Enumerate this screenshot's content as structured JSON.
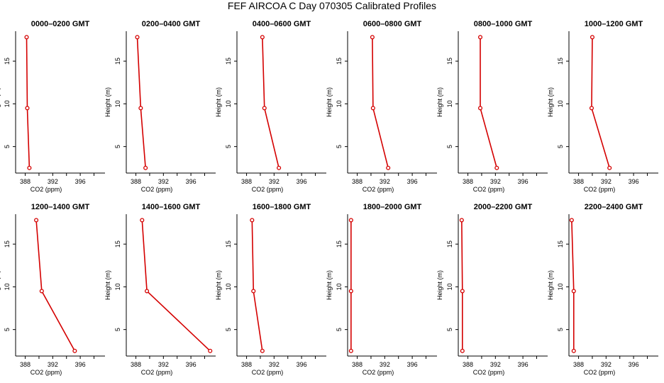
{
  "figure": {
    "title": "FEF AIRCOA C  Day 070305  Calibrated Profiles",
    "xlabel": "CO2 (ppm)",
    "ylabel": "Height (m)",
    "line_color": "#d40000",
    "background": "#ffffff"
  },
  "chart_data": [
    {
      "type": "line",
      "title": "0000–0200 GMT",
      "x": [
        388.2,
        388.3,
        388.6
      ],
      "y": [
        17.8,
        9.5,
        2.5
      ],
      "xticks": [
        388,
        392,
        396
      ],
      "yticks": [
        5,
        10,
        15
      ],
      "xlim": [
        386.6,
        399.6
      ],
      "ylim": [
        1.9,
        18.5
      ]
    },
    {
      "type": "line",
      "title": "0200–0400 GMT",
      "x": [
        388.2,
        388.7,
        389.4
      ],
      "y": [
        17.8,
        9.5,
        2.5
      ],
      "xticks": [
        388,
        392,
        396
      ],
      "yticks": [
        5,
        10,
        15
      ],
      "xlim": [
        386.6,
        399.6
      ],
      "ylim": [
        1.9,
        18.5
      ]
    },
    {
      "type": "line",
      "title": "0400–0600 GMT",
      "x": [
        390.3,
        390.6,
        392.7
      ],
      "y": [
        17.8,
        9.5,
        2.5
      ],
      "xticks": [
        388,
        392,
        396
      ],
      "yticks": [
        5,
        10,
        15
      ],
      "xlim": [
        386.6,
        399.6
      ],
      "ylim": [
        1.9,
        18.5
      ]
    },
    {
      "type": "line",
      "title": "0600–0800 GMT",
      "x": [
        390.2,
        390.3,
        392.5
      ],
      "y": [
        17.8,
        9.5,
        2.5
      ],
      "xticks": [
        388,
        392,
        396
      ],
      "yticks": [
        5,
        10,
        15
      ],
      "xlim": [
        386.6,
        399.6
      ],
      "ylim": [
        1.9,
        18.5
      ]
    },
    {
      "type": "line",
      "title": "0800–1000 GMT",
      "x": [
        389.8,
        389.8,
        392.2
      ],
      "y": [
        17.8,
        9.5,
        2.5
      ],
      "xticks": [
        388,
        392,
        396
      ],
      "yticks": [
        5,
        10,
        15
      ],
      "xlim": [
        386.6,
        399.6
      ],
      "ylim": [
        1.9,
        18.5
      ]
    },
    {
      "type": "line",
      "title": "1000–1200 GMT",
      "x": [
        390.0,
        389.9,
        392.5
      ],
      "y": [
        17.8,
        9.5,
        2.5
      ],
      "xticks": [
        388,
        392,
        396
      ],
      "yticks": [
        5,
        10,
        15
      ],
      "xlim": [
        386.6,
        399.6
      ],
      "ylim": [
        1.9,
        18.5
      ]
    },
    {
      "type": "line",
      "title": "1200–1400 GMT",
      "x": [
        389.6,
        390.4,
        395.2
      ],
      "y": [
        17.8,
        9.5,
        2.5
      ],
      "xticks": [
        388,
        392,
        396
      ],
      "yticks": [
        5,
        10,
        15
      ],
      "xlim": [
        386.6,
        399.6
      ],
      "ylim": [
        1.9,
        18.5
      ]
    },
    {
      "type": "line",
      "title": "1400–1600 GMT",
      "x": [
        388.9,
        389.6,
        398.8
      ],
      "y": [
        17.8,
        9.5,
        2.5
      ],
      "xticks": [
        388,
        392,
        396
      ],
      "yticks": [
        5,
        10,
        15
      ],
      "xlim": [
        386.6,
        399.6
      ],
      "ylim": [
        1.9,
        18.5
      ]
    },
    {
      "type": "line",
      "title": "1600–1800 GMT",
      "x": [
        388.8,
        389.0,
        390.3
      ],
      "y": [
        17.8,
        9.5,
        2.5
      ],
      "xticks": [
        388,
        392,
        396
      ],
      "yticks": [
        5,
        10,
        15
      ],
      "xlim": [
        386.6,
        399.6
      ],
      "ylim": [
        1.9,
        18.5
      ]
    },
    {
      "type": "line",
      "title": "1800–2000 GMT",
      "x": [
        387.1,
        387.1,
        387.1
      ],
      "y": [
        17.8,
        9.5,
        2.5
      ],
      "xticks": [
        388,
        392,
        396
      ],
      "yticks": [
        5,
        10,
        15
      ],
      "xlim": [
        386.6,
        399.6
      ],
      "ylim": [
        1.9,
        18.5
      ]
    },
    {
      "type": "line",
      "title": "2000–2200 GMT",
      "x": [
        387.1,
        387.2,
        387.2
      ],
      "y": [
        17.8,
        9.5,
        2.5
      ],
      "xticks": [
        388,
        392,
        396
      ],
      "yticks": [
        5,
        10,
        15
      ],
      "xlim": [
        386.6,
        399.6
      ],
      "ylim": [
        1.9,
        18.5
      ]
    },
    {
      "type": "line",
      "title": "2200–2400 GMT",
      "x": [
        387.0,
        387.3,
        387.3
      ],
      "y": [
        17.8,
        9.5,
        2.5
      ],
      "xticks": [
        388,
        392,
        396
      ],
      "yticks": [
        5,
        10,
        15
      ],
      "xlim": [
        386.6,
        399.6
      ],
      "ylim": [
        1.9,
        18.5
      ]
    }
  ]
}
